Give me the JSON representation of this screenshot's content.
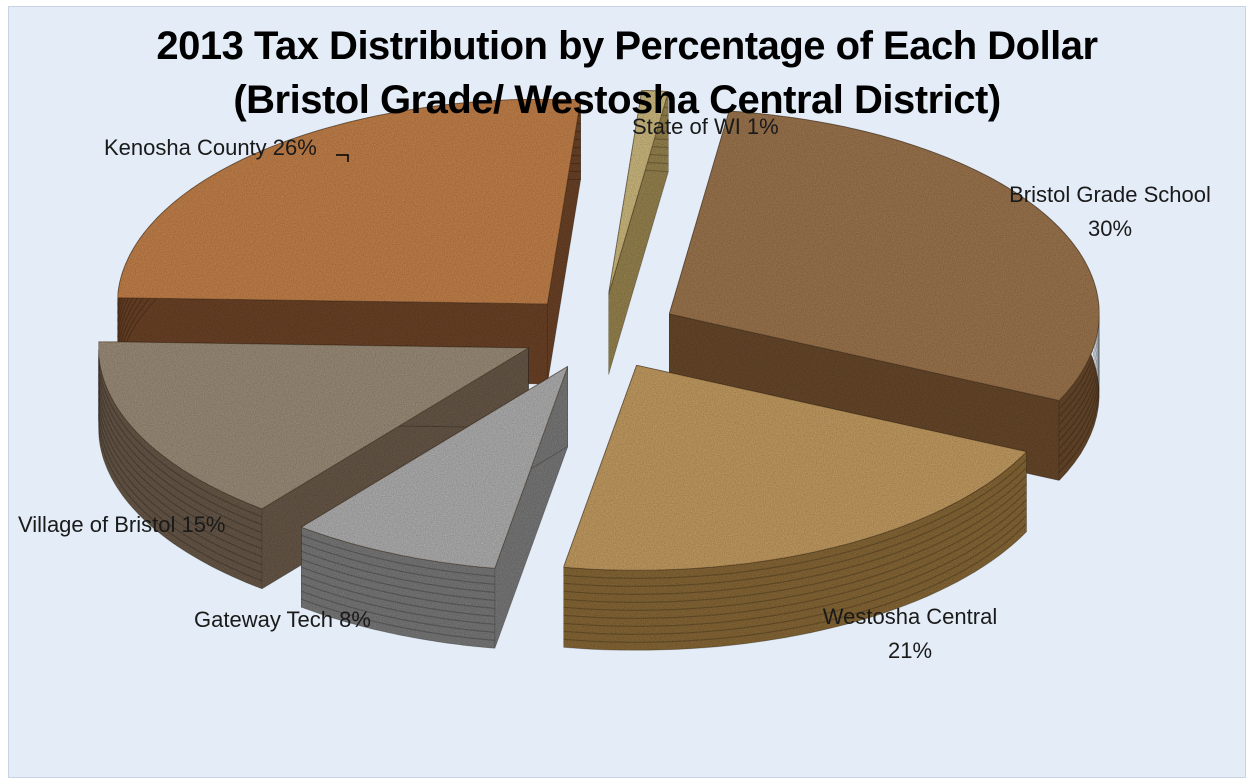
{
  "chart_data": {
    "type": "pie",
    "style": "3d-exploded-textured",
    "title": "2013  Tax Distribution by Percentage of Each Dollar",
    "subtitle": "(Bristol Grade/ Westosha Central District)",
    "categories": [
      "Bristol Grade School",
      "Westosha Central",
      "Gateway Tech",
      "Village of Bristol",
      "Kenosha County",
      "State of WI"
    ],
    "values": [
      30,
      21,
      8,
      15,
      26,
      1
    ],
    "unit": "%",
    "colors": [
      "#a07850",
      "#c8a064",
      "#b4b4b4",
      "#a0907c",
      "#c8844c",
      "#d2be82"
    ],
    "side_colors": [
      "#6a4a2c",
      "#8a6a38",
      "#7c7c7c",
      "#6a5a4a",
      "#6e4428",
      "#9a8650"
    ],
    "labels": {
      "bristol_grade_line1": "Bristol Grade School",
      "bristol_grade_line2": "30%",
      "westosha_line1": "Westosha Central",
      "westosha_line2": "21%",
      "gateway": "Gateway Tech 8%",
      "village": "Village of Bristol 15%",
      "kenosha": "Kenosha County 26%",
      "state": "State of WI 1%"
    },
    "legend": "none",
    "grid": false
  }
}
